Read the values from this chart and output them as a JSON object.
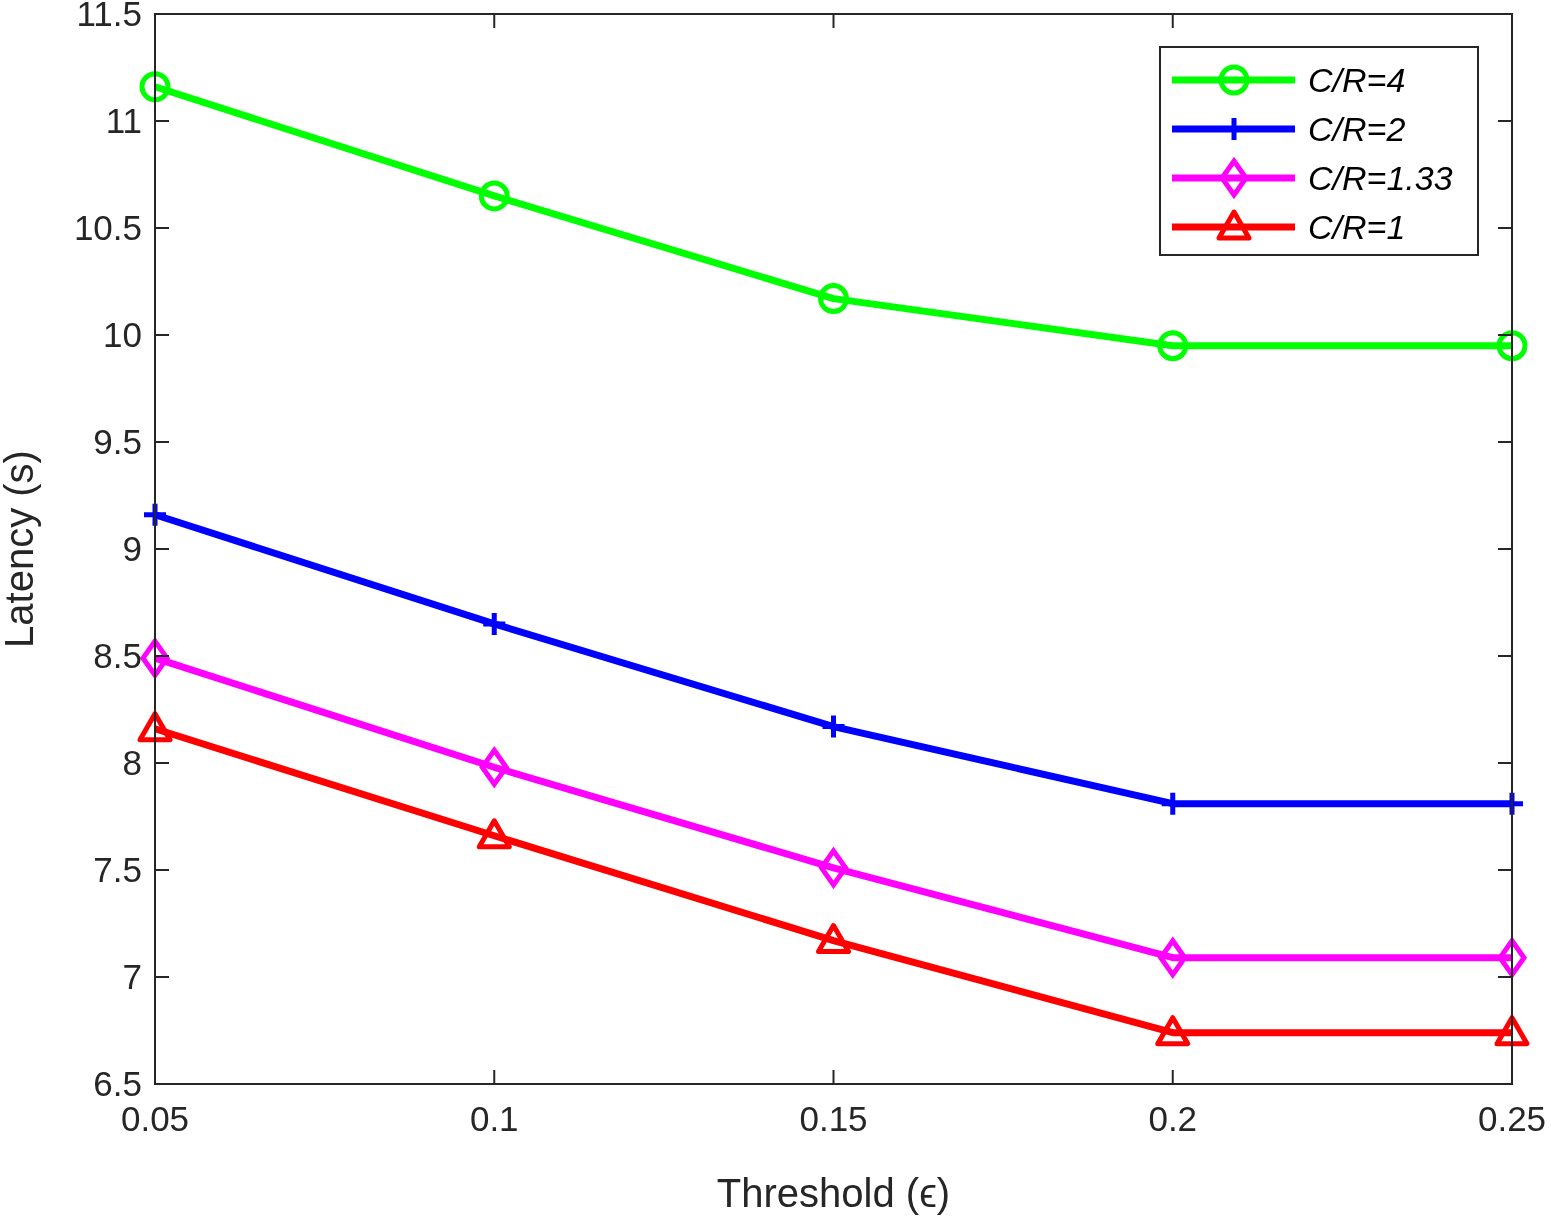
{
  "chart_data": {
    "type": "line",
    "xlabel": "Threshold (ϵ)",
    "ylabel": "Latency (s)",
    "x": [
      0.05,
      0.1,
      0.15,
      0.2,
      0.25
    ],
    "xlim": [
      0.05,
      0.25
    ],
    "xticks": [
      0.05,
      0.1,
      0.15,
      0.2,
      0.25
    ],
    "ylim": [
      6.5,
      11.5
    ],
    "yticks": [
      6.5,
      7,
      7.5,
      8,
      8.5,
      9,
      9.5,
      10,
      10.5,
      11,
      11.5
    ],
    "grid": false,
    "legend": "top right",
    "line_style": "solid",
    "series": [
      {
        "name": "C/R=4",
        "color": "#00ff00",
        "marker": "circle",
        "values": [
          11.16,
          10.65,
          10.17,
          9.95,
          9.95
        ]
      },
      {
        "name": "C/R=2",
        "color": "#0000ff",
        "marker": "cross",
        "values": [
          9.16,
          8.65,
          8.17,
          7.81,
          7.81
        ]
      },
      {
        "name": "C/R=1.33",
        "color": "#ff00ff",
        "marker": "diamond",
        "values": [
          8.49,
          7.98,
          7.51,
          7.09,
          7.09
        ]
      },
      {
        "name": "C/R=1",
        "color": "#ff0000",
        "marker": "triangle",
        "values": [
          8.16,
          7.66,
          7.17,
          6.74,
          6.74
        ]
      }
    ]
  }
}
